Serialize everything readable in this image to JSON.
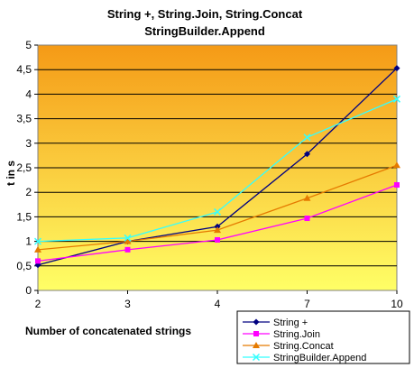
{
  "chart_data": {
    "type": "line",
    "title": [
      "String +, String.Join, String.Concat",
      "StringBuilder.Append"
    ],
    "xlabel": "Number of concatenated strings",
    "ylabel": "t in s",
    "categories": [
      "2",
      "3",
      "4",
      "7",
      "10"
    ],
    "ylim": [
      0,
      5
    ],
    "yticks": [
      "0",
      "0,5",
      "1",
      "1,5",
      "2",
      "2,5",
      "3",
      "3,5",
      "4",
      "4,5",
      "5"
    ],
    "grid": true,
    "legend_position": "bottom-right",
    "background": {
      "top_color": "#f59a16",
      "bottom_color": "#ffff66"
    },
    "series": [
      {
        "name": "String +",
        "values": [
          0.52,
          1.0,
          1.3,
          2.78,
          4.53
        ],
        "color": "#000080",
        "marker": "diamond"
      },
      {
        "name": "String.Join",
        "values": [
          0.6,
          0.83,
          1.03,
          1.47,
          2.15
        ],
        "color": "#ff00ff",
        "marker": "square"
      },
      {
        "name": "String.Concat",
        "values": [
          0.83,
          1.0,
          1.23,
          1.88,
          2.55
        ],
        "color": "#e57a00",
        "marker": "triangle"
      },
      {
        "name": "StringBuilder.Append",
        "values": [
          1.0,
          1.07,
          1.6,
          3.12,
          3.9
        ],
        "color": "#33ffff",
        "marker": "x"
      }
    ]
  }
}
